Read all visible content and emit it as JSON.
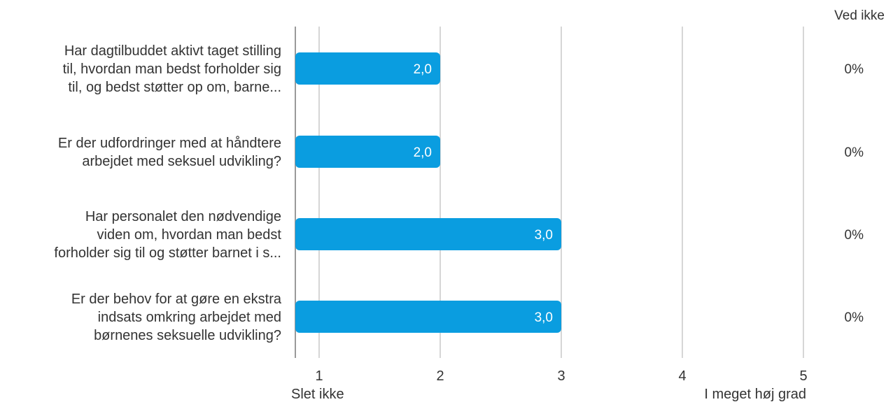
{
  "chart_data": {
    "type": "bar",
    "orientation": "horizontal",
    "categories": [
      [
        "Har dagtilbuddet aktivt taget stilling",
        "til, hvordan man bedst forholder sig",
        "til, og bedst støtter op om, barne..."
      ],
      [
        "Er der udfordringer med at håndtere",
        "arbejdet med seksuel udvikling?"
      ],
      [
        "Har personalet den nødvendige",
        "viden om, hvordan man bedst",
        "forholder sig til og støtter barnet i s..."
      ],
      [
        "Er der behov for at gøre en ekstra",
        "indsats omkring arbejdet med",
        "børnenes seksuelle udvikling?"
      ]
    ],
    "values": [
      2.0,
      2.0,
      3.0,
      3.0
    ],
    "value_labels": [
      "2,0",
      "2,0",
      "3,0",
      "3,0"
    ],
    "xlim": [
      1,
      5
    ],
    "x_ticks": [
      "1",
      "2",
      "3",
      "4",
      "5"
    ],
    "x_axis_end_labels": {
      "min": "Slet ikke",
      "max": "I meget høj grad"
    },
    "side_column": {
      "header": "Ved ikke",
      "values": [
        "0%",
        "0%",
        "0%",
        "0%"
      ]
    },
    "grid": true,
    "colors": {
      "bar": "#0a9de0",
      "grid": "#c8c8c8",
      "axis": "#9a9a9a"
    }
  }
}
